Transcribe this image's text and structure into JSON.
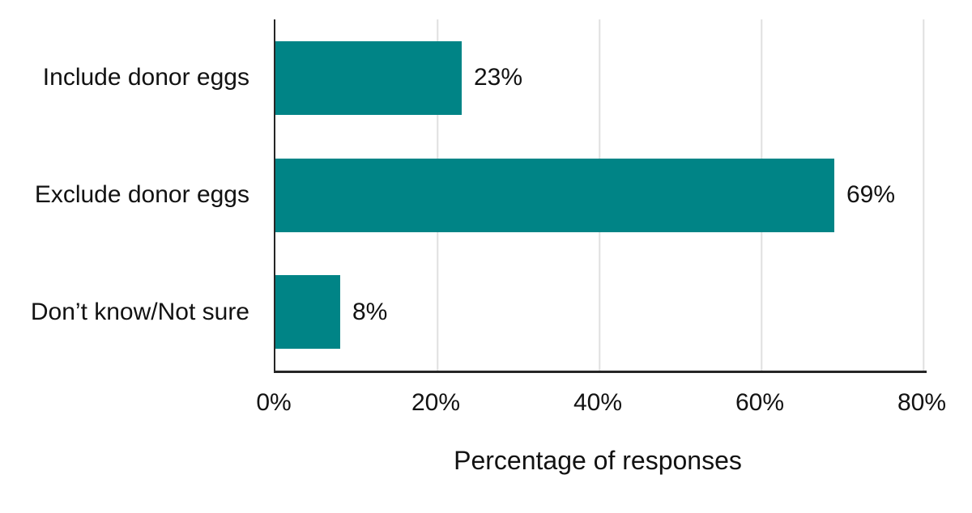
{
  "chart_data": {
    "type": "bar",
    "orientation": "horizontal",
    "categories": [
      "Include donor eggs",
      "Exclude donor eggs",
      "Don’t know/Not sure"
    ],
    "values": [
      23,
      69,
      8
    ],
    "value_labels": [
      "23%",
      "69%",
      "8%"
    ],
    "xlabel": "Percentage of responses",
    "x_ticks": [
      {
        "value": 0,
        "label": "0%"
      },
      {
        "value": 20,
        "label": "20%"
      },
      {
        "value": 40,
        "label": "40%"
      },
      {
        "value": 60,
        "label": "60%"
      },
      {
        "value": 80,
        "label": "80%"
      }
    ],
    "xlim": [
      0,
      80
    ],
    "grid": true,
    "legend": "none",
    "colors": {
      "bar": "#008486",
      "axis": "#262626",
      "gridline": "#e0e0e0",
      "text": "#121212",
      "background": "#ffffff"
    }
  }
}
